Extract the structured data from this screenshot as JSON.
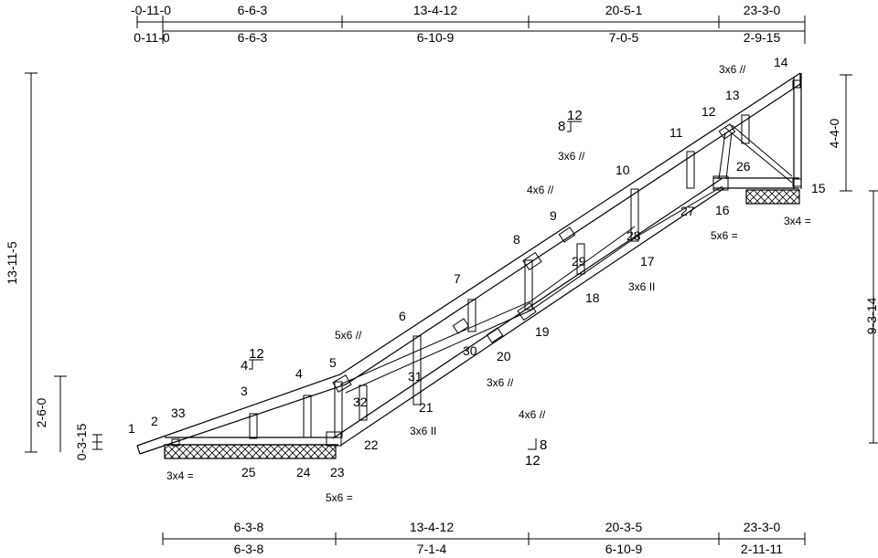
{
  "dimensions": {
    "top_row1": [
      "-0-11-0",
      "6-6-3",
      "13-4-12",
      "20-5-1",
      "23-3-0"
    ],
    "top_row2": [
      "0-11-0",
      "6-6-3",
      "6-10-9",
      "7-0-5",
      "2-9-15"
    ],
    "bottom_row1": [
      "6-3-8",
      "13-4-12",
      "20-3-5",
      "23-3-0"
    ],
    "bottom_row2": [
      "6-3-8",
      "7-1-4",
      "6-10-9",
      "2-11-11"
    ],
    "left_overall": "13-11-5",
    "left_heel": "2-6-0",
    "left_small": "0-3-15",
    "right_upper": "4-4-0",
    "right_lower": "9-3-14"
  },
  "pitch": {
    "top_rise": "12",
    "top_run": "4",
    "mid_rise": "12",
    "mid_run": "8",
    "bottom_rise": "8",
    "bottom_run": "12"
  },
  "joints": [
    "1",
    "2",
    "3",
    "4",
    "5",
    "6",
    "7",
    "8",
    "9",
    "10",
    "11",
    "12",
    "13",
    "14",
    "15",
    "16",
    "17",
    "18",
    "19",
    "20",
    "21",
    "22",
    "23",
    "24",
    "25",
    "26",
    "27",
    "28",
    "29",
    "30",
    "31",
    "32",
    "33"
  ],
  "plates": [
    "3x6",
    "3x6",
    "4x6",
    "5x6",
    "3x4",
    "5x6",
    "3x6",
    "5x6",
    "3x4",
    "5x6",
    "3x6",
    "3x6",
    "4x6"
  ],
  "plate_marks": {
    "parallel": "=",
    "perpendicular": "II",
    "slanted": "//"
  }
}
